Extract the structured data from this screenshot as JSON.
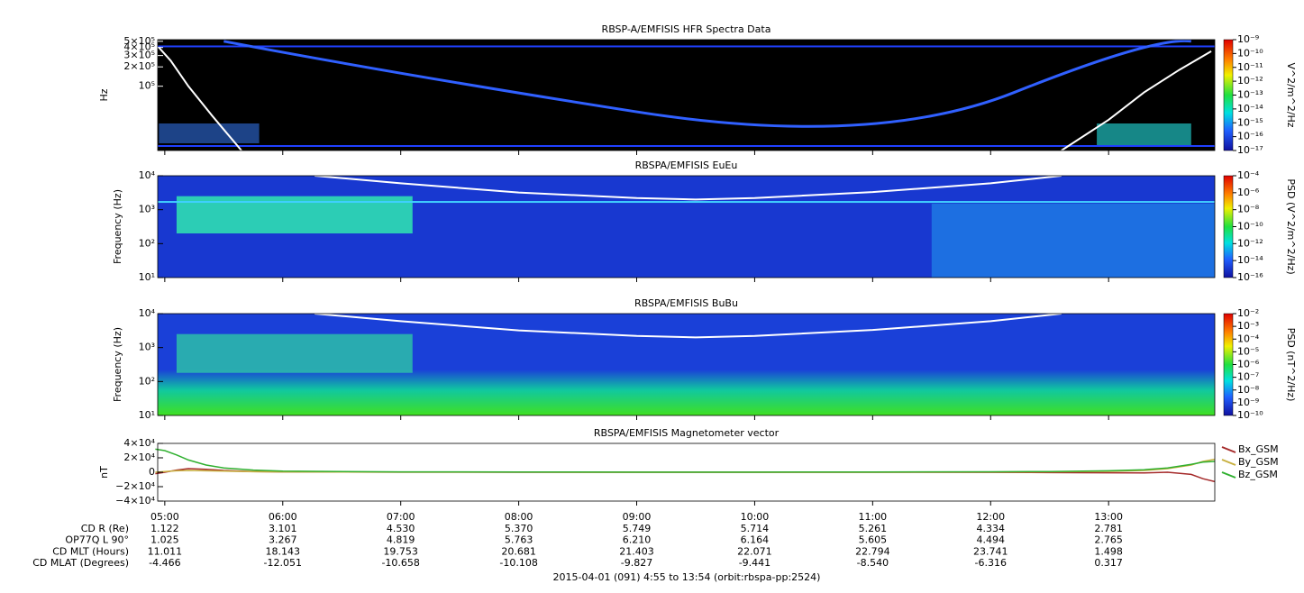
{
  "chart_data": [
    {
      "type": "spectrogram",
      "title": "RBSP-A/EMFISIS  HFR Spectra Data",
      "ylabel": "Hz",
      "log_y": true,
      "ylim": [
        10000,
        530000
      ],
      "yticks": [
        {
          "value": 500000,
          "label": "5×10⁵"
        },
        {
          "value": 400000,
          "label": "4×10⁵"
        },
        {
          "value": 300000,
          "label": "3×10⁵"
        },
        {
          "value": 200000,
          "label": "2×10⁵"
        },
        {
          "value": 100000,
          "label": "10⁵"
        }
      ],
      "colorbar": {
        "label": "V^2/m^2/Hz",
        "lim": [
          1e-17,
          1e-09
        ],
        "ticks": [
          {
            "value": 1e-09,
            "label": "10⁻⁹"
          },
          {
            "value": 1e-10,
            "label": "10⁻¹⁰"
          },
          {
            "value": 1e-11,
            "label": "10⁻¹¹"
          },
          {
            "value": 1e-12,
            "label": "10⁻¹²"
          },
          {
            "value": 1e-13,
            "label": "10⁻¹³"
          },
          {
            "value": 1e-14,
            "label": "10⁻¹⁴"
          },
          {
            "value": 1e-15,
            "label": "10⁻¹⁵"
          },
          {
            "value": 1e-16,
            "label": "10⁻¹⁶"
          },
          {
            "value": 1e-17,
            "label": "10⁻¹⁷"
          }
        ]
      },
      "overlay": {
        "color": "#ffffff",
        "x": [
          4.95,
          5.05,
          5.2,
          5.4,
          5.65,
          9,
          12.6,
          13.0,
          13.3,
          13.6,
          13.87
        ],
        "values": [
          400000,
          250000,
          100000,
          35000,
          10000,
          null,
          10000,
          30000,
          80000,
          180000,
          350000
        ]
      }
    },
    {
      "type": "spectrogram",
      "title": "RBSPA/EMFISIS  EuEu",
      "ylabel": "Frequency (Hz)",
      "log_y": true,
      "ylim": [
        10,
        10000
      ],
      "yticks": [
        {
          "value": 10,
          "label": "10¹"
        },
        {
          "value": 100,
          "label": "10²"
        },
        {
          "value": 1000,
          "label": "10³"
        },
        {
          "value": 10000,
          "label": "10⁴"
        }
      ],
      "colorbar": {
        "label": "PSD (V^2/m^2/Hz)",
        "lim": [
          1e-16,
          0.0001
        ],
        "ticks": [
          {
            "value": 0.0001,
            "label": "10⁻⁴"
          },
          {
            "value": 1e-06,
            "label": "10⁻⁶"
          },
          {
            "value": 1e-08,
            "label": "10⁻⁸"
          },
          {
            "value": 1e-10,
            "label": "10⁻¹⁰"
          },
          {
            "value": 1e-12,
            "label": "10⁻¹²"
          },
          {
            "value": 1e-14,
            "label": "10⁻¹⁴"
          },
          {
            "value": 1e-16,
            "label": "10⁻¹⁶"
          }
        ]
      },
      "overlay": {
        "color": "#ffffff",
        "x": [
          6.27,
          7,
          8,
          9,
          9.5,
          10,
          11,
          12,
          12.6
        ],
        "values": [
          10000,
          6000,
          3200,
          2200,
          2000,
          2200,
          3300,
          6000,
          10000
        ]
      }
    },
    {
      "type": "spectrogram",
      "title": "RBSPA/EMFISIS  BuBu",
      "ylabel": "Frequency (Hz)",
      "log_y": true,
      "ylim": [
        10,
        10000
      ],
      "yticks": [
        {
          "value": 10,
          "label": "10¹"
        },
        {
          "value": 100,
          "label": "10²"
        },
        {
          "value": 1000,
          "label": "10³"
        },
        {
          "value": 10000,
          "label": "10⁴"
        }
      ],
      "colorbar": {
        "label": "PSD (nT^2/Hz)",
        "lim": [
          1e-10,
          0.01
        ],
        "ticks": [
          {
            "value": 0.01,
            "label": "10⁻²"
          },
          {
            "value": 0.001,
            "label": "10⁻³"
          },
          {
            "value": 0.0001,
            "label": "10⁻⁴"
          },
          {
            "value": 1e-05,
            "label": "10⁻⁵"
          },
          {
            "value": 1e-06,
            "label": "10⁻⁶"
          },
          {
            "value": 1e-07,
            "label": "10⁻⁷"
          },
          {
            "value": 1e-08,
            "label": "10⁻⁸"
          },
          {
            "value": 1e-09,
            "label": "10⁻⁹"
          },
          {
            "value": 1e-10,
            "label": "10⁻¹⁰"
          }
        ]
      },
      "overlay": {
        "color": "#ffffff",
        "x": [
          6.27,
          7,
          8,
          9,
          9.5,
          10,
          11,
          12,
          12.6
        ],
        "values": [
          10000,
          6000,
          3200,
          2200,
          2000,
          2200,
          3300,
          6000,
          10000
        ]
      }
    },
    {
      "type": "line",
      "title": "RBSPA/EMFISIS  Magnetometer vector",
      "ylabel": "nT",
      "ylim": [
        -40000,
        40000
      ],
      "yticks": [
        {
          "value": 40000,
          "label": "4×10⁴"
        },
        {
          "value": 20000,
          "label": "2×10⁴"
        },
        0,
        {
          "value": -20000,
          "label": "−2×10⁴"
        },
        {
          "value": -40000,
          "label": "−4×10⁴"
        }
      ],
      "x": [
        4.92,
        5.0,
        5.1,
        5.2,
        5.35,
        5.5,
        5.75,
        6,
        7,
        8,
        9,
        10,
        11,
        12,
        12.5,
        13,
        13.3,
        13.5,
        13.7,
        13.8,
        13.9
      ],
      "series": [
        {
          "name": "Bx_GSM",
          "color": "#a52a2a",
          "values": [
            -2000,
            0,
            3000,
            5000,
            4000,
            2500,
            1000,
            500,
            200,
            0,
            0,
            0,
            0,
            -200,
            -400,
            -800,
            -1000,
            0,
            -3000,
            -9000,
            -13000
          ]
        },
        {
          "name": "By_GSM",
          "color": "#c8b040",
          "values": [
            0,
            1000,
            2000,
            2500,
            2000,
            1500,
            800,
            400,
            200,
            100,
            0,
            0,
            0,
            300,
            600,
            1200,
            2500,
            5000,
            10000,
            15000,
            18000
          ]
        },
        {
          "name": "Bz_GSM",
          "color": "#30b030",
          "values": [
            32000,
            30000,
            24000,
            17000,
            10000,
            6000,
            3000,
            1500,
            500,
            300,
            200,
            200,
            300,
            600,
            1000,
            2000,
            3500,
            6000,
            11000,
            14000,
            15000
          ]
        }
      ]
    }
  ],
  "time_axis": {
    "xlim": [
      4.94,
      13.9
    ],
    "xticks": [
      {
        "value": 5,
        "label": "05:00"
      },
      {
        "value": 6,
        "label": "06:00"
      },
      {
        "value": 7,
        "label": "07:00"
      },
      {
        "value": 8,
        "label": "08:00"
      },
      {
        "value": 9,
        "label": "09:00"
      },
      {
        "value": 10,
        "label": "10:00"
      },
      {
        "value": 11,
        "label": "11:00"
      },
      {
        "value": 12,
        "label": "12:00"
      },
      {
        "value": 13,
        "label": "13:00"
      }
    ]
  },
  "ephemeris": {
    "rows": [
      {
        "label": "CD R (Re)",
        "values": [
          "1.122",
          "3.101",
          "4.530",
          "5.370",
          "5.749",
          "5.714",
          "5.261",
          "4.334",
          "2.781"
        ]
      },
      {
        "label": "OP77Q L 90°",
        "values": [
          "1.025",
          "3.267",
          "4.819",
          "5.763",
          "6.210",
          "6.164",
          "5.605",
          "4.494",
          "2.765"
        ]
      },
      {
        "label": "CD MLT (Hours)",
        "values": [
          "11.011",
          "18.143",
          "19.753",
          "20.681",
          "21.403",
          "22.071",
          "22.794",
          "23.741",
          "1.498"
        ]
      },
      {
        "label": "CD MLAT (Degrees)",
        "values": [
          "-4.466",
          "-12.051",
          "-10.658",
          "-10.108",
          "-9.827",
          "-9.441",
          "-8.540",
          "-6.316",
          "0.317"
        ]
      }
    ]
  },
  "footer": "2015-04-01 (091) 4:55 to 13:54 (orbit:rbspa-pp:2524)"
}
